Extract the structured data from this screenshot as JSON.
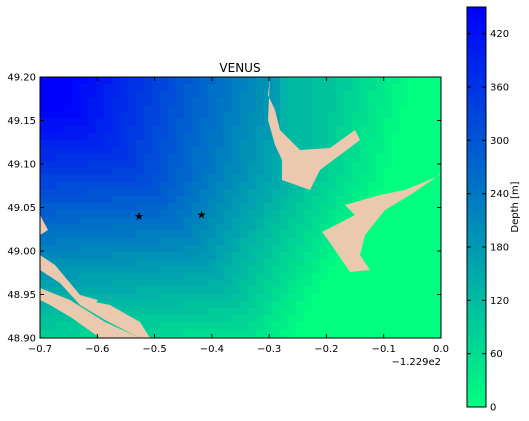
{
  "chart_data": {
    "type": "heatmap",
    "title": "VENUS",
    "xlabel": "",
    "ylabel": "",
    "x_offset_label": "−1.229e2",
    "xlim": [
      -0.7,
      0.0
    ],
    "ylim": [
      48.9,
      49.2
    ],
    "x_ticks": [
      -0.7,
      -0.6,
      -0.5,
      -0.4,
      -0.3,
      -0.2,
      -0.1,
      0.0
    ],
    "x_tick_labels": [
      "−0.7",
      "−0.6",
      "−0.5",
      "−0.4",
      "−0.3",
      "−0.2",
      "−0.1",
      "0.0"
    ],
    "y_ticks": [
      48.9,
      48.95,
      49.0,
      49.05,
      49.1,
      49.15,
      49.2
    ],
    "y_tick_labels": [
      "48.90",
      "48.95",
      "49.00",
      "49.05",
      "49.10",
      "49.15",
      "49.20"
    ],
    "grid": false,
    "colorbar": {
      "label": "Depth [m]",
      "range": [
        0,
        450
      ],
      "ticks": [
        0,
        60,
        120,
        180,
        240,
        300,
        360,
        420
      ],
      "tick_labels": [
        "0",
        "60",
        "120",
        "180",
        "240",
        "300",
        "360",
        "420"
      ],
      "color_min": "#00ff80",
      "color_max": "#0000ff"
    },
    "land_color": "#ebc9ae",
    "stations": [
      {
        "x": -0.527,
        "y": 49.04,
        "marker": "★"
      },
      {
        "x": -0.418,
        "y": 49.042,
        "marker": "★"
      }
    ]
  }
}
